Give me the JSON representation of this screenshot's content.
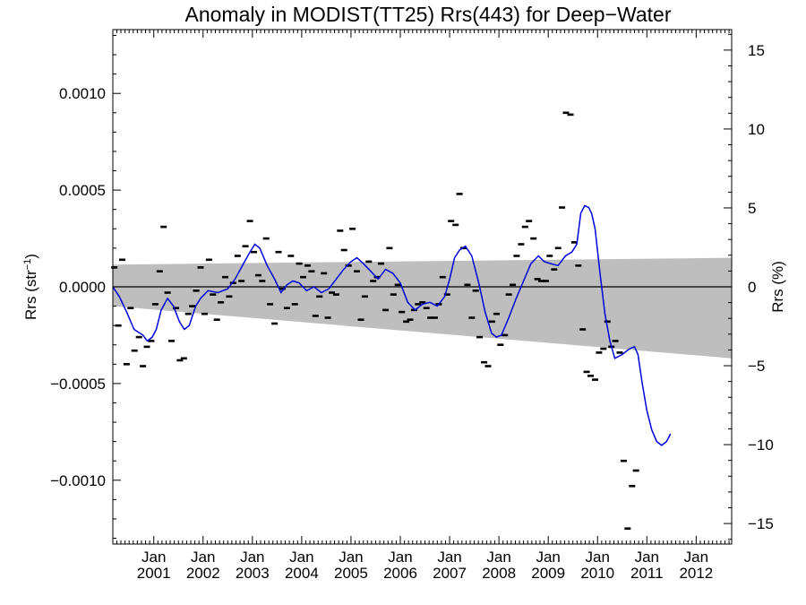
{
  "chart_data": {
    "type": "line",
    "title": "Anomaly in MODIST(TT25) Rrs(443) for Deep−Water",
    "ylabel_left": "Rrs (str",
    "ylabel_left_sup": "−1",
    "ylabel_left_end": ")",
    "ylabel_right": "Rrs (%)",
    "xlim": [
      2000.17,
      2012.72
    ],
    "ylim_left": [
      -0.00133,
      0.00133
    ],
    "ylim_right": [
      -16.3,
      16.3
    ],
    "left_ticks": [
      {
        "value": 0.001,
        "label": "0.0010"
      },
      {
        "value": 0.0005,
        "label": "0.0005"
      },
      {
        "value": 0.0,
        "label": "0.0000"
      },
      {
        "value": -0.0005,
        "label": "−0.0005"
      },
      {
        "value": -0.001,
        "label": "−0.0010"
      }
    ],
    "right_ticks": [
      {
        "value": 15,
        "label": "15"
      },
      {
        "value": 10,
        "label": "10"
      },
      {
        "value": 5,
        "label": "5"
      },
      {
        "value": 0,
        "label": "0"
      },
      {
        "value": -5,
        "label": "−5"
      },
      {
        "value": -10,
        "label": "−10"
      },
      {
        "value": -15,
        "label": "−15"
      }
    ],
    "x_ticks": [
      {
        "value": 2001.0,
        "month": "Jan",
        "year": "2001"
      },
      {
        "value": 2002.0,
        "month": "Jan",
        "year": "2002"
      },
      {
        "value": 2003.0,
        "month": "Jan",
        "year": "2003"
      },
      {
        "value": 2004.0,
        "month": "Jan",
        "year": "2004"
      },
      {
        "value": 2005.0,
        "month": "Jan",
        "year": "2005"
      },
      {
        "value": 2006.0,
        "month": "Jan",
        "year": "2006"
      },
      {
        "value": 2007.0,
        "month": "Jan",
        "year": "2007"
      },
      {
        "value": 2008.0,
        "month": "Jan",
        "year": "2008"
      },
      {
        "value": 2009.0,
        "month": "Jan",
        "year": "2009"
      },
      {
        "value": 2010.0,
        "month": "Jan",
        "year": "2010"
      },
      {
        "value": 2011.0,
        "month": "Jan",
        "year": "2011"
      },
      {
        "value": 2012.0,
        "month": "Jan",
        "year": "2012"
      }
    ],
    "confidence_band": {
      "upper": [
        [
          2000.17,
          0.000115
        ],
        [
          2012.72,
          0.00015
        ]
      ],
      "lower": [
        [
          2000.17,
          -0.0001
        ],
        [
          2012.72,
          -0.00037
        ]
      ]
    },
    "zero_line": 0,
    "points": [
      [
        2000.2,
        0.0001
      ],
      [
        2000.28,
        -0.0002
      ],
      [
        2000.36,
        0.00014
      ],
      [
        2000.45,
        -0.0004
      ],
      [
        2000.53,
        -0.00011
      ],
      [
        2000.61,
        -0.00033
      ],
      [
        2000.7,
        -0.00026
      ],
      [
        2000.78,
        -0.00041
      ],
      [
        2000.86,
        -0.00031
      ],
      [
        2000.95,
        -0.00028
      ],
      [
        2001.03,
        -9e-05
      ],
      [
        2001.12,
        8e-05
      ],
      [
        2001.2,
        0.00031
      ],
      [
        2001.28,
        -3e-05
      ],
      [
        2001.36,
        -0.00028
      ],
      [
        2001.45,
        -0.00011
      ],
      [
        2001.53,
        -0.00038
      ],
      [
        2001.61,
        -0.00037
      ],
      [
        2001.7,
        -0.00014
      ],
      [
        2001.78,
        -0.0001
      ],
      [
        2001.86,
        -2e-05
      ],
      [
        2001.95,
        0.0001
      ],
      [
        2002.03,
        -0.00014
      ],
      [
        2002.12,
        0.00014
      ],
      [
        2002.2,
        -4e-05
      ],
      [
        2002.28,
        -0.00017
      ],
      [
        2002.36,
        -8e-05
      ],
      [
        2002.45,
        5e-05
      ],
      [
        2002.53,
        -5e-05
      ],
      [
        2002.61,
        2e-05
      ],
      [
        2002.7,
        0.00016
      ],
      [
        2002.78,
        3e-05
      ],
      [
        2002.86,
        0.00021
      ],
      [
        2002.95,
        0.00034
      ],
      [
        2003.03,
        0.00018
      ],
      [
        2003.12,
        6e-05
      ],
      [
        2003.2,
        3e-05
      ],
      [
        2003.28,
        0.00025
      ],
      [
        2003.36,
        -9e-05
      ],
      [
        2003.45,
        -0.00019
      ],
      [
        2003.53,
        0.00018
      ],
      [
        2003.61,
        -1e-05
      ],
      [
        2003.7,
        -0.00011
      ],
      [
        2003.78,
        0.00016
      ],
      [
        2003.86,
        -9e-05
      ],
      [
        2003.95,
        0.00012
      ],
      [
        2004.03,
        5e-05
      ],
      [
        2004.12,
        0.00011
      ],
      [
        2004.2,
        8e-05
      ],
      [
        2004.28,
        -0.00015
      ],
      [
        2004.36,
        -5e-05
      ],
      [
        2004.45,
        7e-05
      ],
      [
        2004.53,
        -0.00016
      ],
      [
        2004.61,
        -3e-05
      ],
      [
        2004.7,
        -4e-05
      ],
      [
        2004.78,
        0.00029
      ],
      [
        2004.86,
        0.00019
      ],
      [
        2004.95,
        0.00011
      ],
      [
        2005.03,
        0.0003
      ],
      [
        2005.12,
        8e-05
      ],
      [
        2005.2,
        -0.00017
      ],
      [
        2005.28,
        -5e-05
      ],
      [
        2005.36,
        0.00013
      ],
      [
        2005.45,
        3e-05
      ],
      [
        2005.53,
        5e-05
      ],
      [
        2005.61,
        0.00012
      ],
      [
        2005.7,
        -0.00012
      ],
      [
        2005.78,
        0.0002
      ],
      [
        2005.86,
        -4e-05
      ],
      [
        2005.95,
        1e-05
      ],
      [
        2006.03,
        -0.00013
      ],
      [
        2006.12,
        -0.00018
      ],
      [
        2006.2,
        -0.00017
      ],
      [
        2006.28,
        -0.00012
      ],
      [
        2006.36,
        -9e-05
      ],
      [
        2006.45,
        -8e-05
      ],
      [
        2006.53,
        -0.00011
      ],
      [
        2006.61,
        -0.00016
      ],
      [
        2006.7,
        -0.00016
      ],
      [
        2006.78,
        -9e-05
      ],
      [
        2006.86,
        5e-05
      ],
      [
        2006.95,
        -4e-05
      ],
      [
        2007.03,
        0.00034
      ],
      [
        2007.12,
        0.00032
      ],
      [
        2007.2,
        0.00048
      ],
      [
        2007.28,
        0.0002
      ],
      [
        2007.36,
        1e-05
      ],
      [
        2007.45,
        -0.00016
      ],
      [
        2007.53,
        -2e-05
      ],
      [
        2007.61,
        -0.00026
      ],
      [
        2007.7,
        -0.00039
      ],
      [
        2007.78,
        -0.00041
      ],
      [
        2007.86,
        -0.00018
      ],
      [
        2007.95,
        -0.00014
      ],
      [
        2008.03,
        -0.0003
      ],
      [
        2008.12,
        -0.00025
      ],
      [
        2008.2,
        -4e-05
      ],
      [
        2008.28,
        1e-05
      ],
      [
        2008.36,
        0.00016
      ],
      [
        2008.45,
        0.00022
      ],
      [
        2008.53,
        0.00031
      ],
      [
        2008.61,
        0.00034
      ],
      [
        2008.7,
        0.00025
      ],
      [
        2008.78,
        4e-05
      ],
      [
        2008.86,
        3e-05
      ],
      [
        2008.95,
        3e-05
      ],
      [
        2009.03,
        0.00016
      ],
      [
        2009.12,
        9e-05
      ],
      [
        2009.2,
        0.0002
      ],
      [
        2009.28,
        0.00041
      ],
      [
        2009.36,
        0.0009
      ],
      [
        2009.45,
        0.00089
      ],
      [
        2009.53,
        0.00023
      ],
      [
        2009.61,
        0.00011
      ],
      [
        2009.7,
        -0.00022
      ],
      [
        2009.78,
        -0.00044
      ],
      [
        2009.86,
        -0.00046
      ],
      [
        2009.95,
        -0.00048
      ],
      [
        2010.03,
        -0.00034
      ],
      [
        2010.12,
        -0.00032
      ],
      [
        2010.2,
        -0.00018
      ],
      [
        2010.28,
        -0.00031
      ],
      [
        2010.36,
        -0.00028
      ],
      [
        2010.45,
        -0.00034
      ],
      [
        2010.53,
        -0.0009
      ],
      [
        2010.61,
        -0.00125
      ],
      [
        2010.7,
        -0.00103
      ],
      [
        2010.78,
        -0.00095
      ]
    ],
    "series": [
      {
        "color": "#0000dd",
        "points": [
          [
            2000.17,
            0.0
          ],
          [
            2000.3,
            -5e-05
          ],
          [
            2000.45,
            -0.00013
          ],
          [
            2000.6,
            -0.00022
          ],
          [
            2000.78,
            -0.00025
          ],
          [
            2000.87,
            -0.00028
          ],
          [
            2000.97,
            -0.00026
          ],
          [
            2001.05,
            -0.00022
          ],
          [
            2001.15,
            -0.00012
          ],
          [
            2001.28,
            -6e-05
          ],
          [
            2001.4,
            -0.0001
          ],
          [
            2001.52,
            -0.00018
          ],
          [
            2001.62,
            -0.00022
          ],
          [
            2001.72,
            -0.0002
          ],
          [
            2001.85,
            -0.0001
          ],
          [
            2001.95,
            -6e-05
          ],
          [
            2002.1,
            -2e-05
          ],
          [
            2002.3,
            -3e-05
          ],
          [
            2002.5,
            -1e-05
          ],
          [
            2002.65,
            4e-05
          ],
          [
            2002.82,
            0.00012
          ],
          [
            2002.95,
            0.00018
          ],
          [
            2003.05,
            0.00022
          ],
          [
            2003.15,
            0.0002
          ],
          [
            2003.3,
            0.00011
          ],
          [
            2003.45,
            4e-05
          ],
          [
            2003.58,
            -3e-05
          ],
          [
            2003.7,
            1e-05
          ],
          [
            2003.82,
            3e-05
          ],
          [
            2003.95,
            2e-05
          ],
          [
            2004.1,
            -2e-05
          ],
          [
            2004.25,
            0.0
          ],
          [
            2004.4,
            -3e-05
          ],
          [
            2004.55,
            -1e-05
          ],
          [
            2004.7,
            4e-05
          ],
          [
            2004.85,
            9e-05
          ],
          [
            2005.0,
            0.00013
          ],
          [
            2005.12,
            0.00015
          ],
          [
            2005.25,
            0.00012
          ],
          [
            2005.4,
            8e-05
          ],
          [
            2005.55,
            4e-05
          ],
          [
            2005.7,
            9e-05
          ],
          [
            2005.85,
            7e-05
          ],
          [
            2006.0,
            2e-05
          ],
          [
            2006.15,
            -8e-05
          ],
          [
            2006.3,
            -0.00012
          ],
          [
            2006.45,
            -9e-05
          ],
          [
            2006.6,
            -8e-05
          ],
          [
            2006.75,
            -0.0001
          ],
          [
            2006.9,
            -5e-05
          ],
          [
            2007.0,
            4e-05
          ],
          [
            2007.1,
            0.00015
          ],
          [
            2007.2,
            0.00019
          ],
          [
            2007.32,
            0.00021
          ],
          [
            2007.45,
            0.00016
          ],
          [
            2007.6,
            1e-05
          ],
          [
            2007.72,
            -0.00013
          ],
          [
            2007.85,
            -0.00024
          ],
          [
            2007.95,
            -0.00026
          ],
          [
            2008.05,
            -0.00025
          ],
          [
            2008.2,
            -0.00016
          ],
          [
            2008.35,
            -6e-05
          ],
          [
            2008.5,
            3e-05
          ],
          [
            2008.65,
            0.00012
          ],
          [
            2008.8,
            0.00016
          ],
          [
            2008.92,
            0.00013
          ],
          [
            2009.05,
            0.00012
          ],
          [
            2009.2,
            0.00011
          ],
          [
            2009.35,
            0.00016
          ],
          [
            2009.48,
            0.00018
          ],
          [
            2009.58,
            0.00022
          ],
          [
            2009.66,
            0.00038
          ],
          [
            2009.74,
            0.00042
          ],
          [
            2009.82,
            0.00041
          ],
          [
            2009.88,
            0.00038
          ],
          [
            2009.95,
            0.0003
          ],
          [
            2010.05,
            7e-05
          ],
          [
            2010.15,
            -0.00014
          ],
          [
            2010.25,
            -0.00028
          ],
          [
            2010.35,
            -0.00037
          ],
          [
            2010.5,
            -0.00035
          ],
          [
            2010.65,
            -0.00032
          ],
          [
            2010.75,
            -0.00031
          ],
          [
            2010.82,
            -0.00035
          ],
          [
            2010.9,
            -0.00049
          ],
          [
            2011.0,
            -0.00064
          ],
          [
            2011.1,
            -0.00074
          ],
          [
            2011.2,
            -0.0008
          ],
          [
            2011.3,
            -0.00082
          ],
          [
            2011.4,
            -0.0008
          ],
          [
            2011.48,
            -0.00076
          ]
        ]
      }
    ]
  }
}
